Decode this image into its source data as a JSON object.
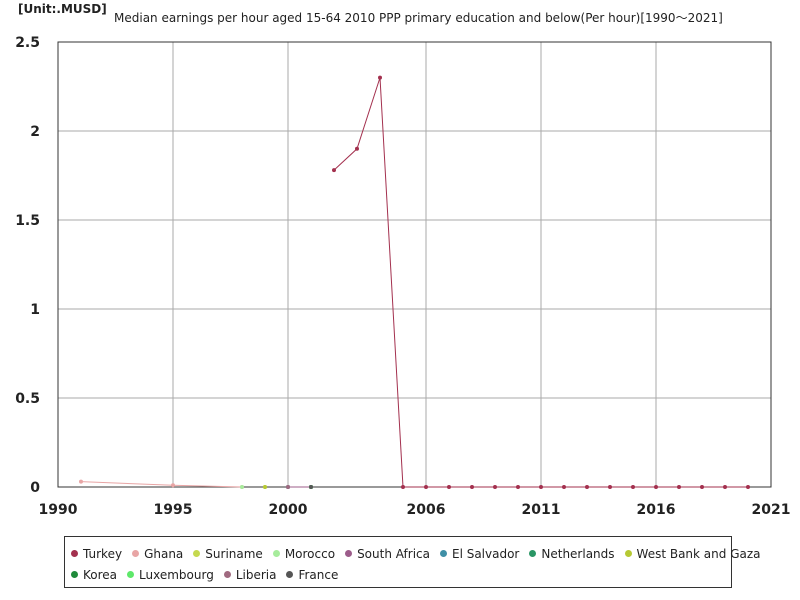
{
  "chart_data": {
    "type": "line",
    "title": "Median earnings per hour aged 15-64 2010 PPP primary education and below(Per hour)[1990～2021]",
    "unit_label": "[Unit:.MUSD]",
    "xlim": [
      1990,
      2021
    ],
    "ylim": [
      0,
      2.5
    ],
    "x_ticks": [
      1990,
      1995,
      2000,
      2006,
      2011,
      2016,
      2021
    ],
    "y_ticks": [
      0,
      0.5,
      1,
      1.5,
      2,
      2.5
    ],
    "grid": true,
    "legend_position": "bottom",
    "series": [
      {
        "name": "Turkey",
        "color": "#a3304e",
        "points": [
          [
            2002,
            1.78
          ],
          [
            2003,
            1.9
          ],
          [
            2004,
            2.3
          ],
          [
            2005,
            0
          ],
          [
            2006,
            0
          ],
          [
            2007,
            0
          ],
          [
            2008,
            0
          ],
          [
            2009,
            0
          ],
          [
            2010,
            0
          ],
          [
            2011,
            0
          ],
          [
            2012,
            0
          ],
          [
            2013,
            0
          ],
          [
            2014,
            0
          ],
          [
            2015,
            0
          ],
          [
            2016,
            0
          ],
          [
            2017,
            0
          ],
          [
            2018,
            0
          ],
          [
            2019,
            0
          ],
          [
            2020,
            0
          ]
        ]
      },
      {
        "name": "Ghana",
        "color": "#e8a5a5",
        "points": [
          [
            1991,
            0.03
          ],
          [
            1995,
            0.01
          ],
          [
            1998,
            0.0
          ]
        ]
      },
      {
        "name": "Suriname",
        "color": "#c5d94f",
        "points": [
          [
            1999,
            0.0
          ]
        ]
      },
      {
        "name": "Morocco",
        "color": "#a7ec9c",
        "points": [
          [
            1998,
            0.0
          ]
        ]
      },
      {
        "name": "South Africa",
        "color": "#9c5c8a",
        "points": [
          [
            2000,
            0.0
          ],
          [
            2001,
            0.0
          ]
        ]
      },
      {
        "name": "El Salvador",
        "color": "#3f8fa6",
        "points": [
          [
            2000,
            0.0
          ]
        ]
      },
      {
        "name": "Netherlands",
        "color": "#2a9665",
        "points": [
          [
            2001,
            0.0
          ]
        ]
      },
      {
        "name": "West Bank and Gaza",
        "color": "#b6c934",
        "points": [
          [
            1999,
            0.0
          ]
        ]
      },
      {
        "name": "Korea",
        "color": "#1f8a3a",
        "points": [
          [
            2001,
            0.0
          ]
        ]
      },
      {
        "name": "Luxembourg",
        "color": "#5ee86a",
        "points": [
          [
            2001,
            0.0
          ]
        ]
      },
      {
        "name": "Liberia",
        "color": "#a06a80",
        "points": [
          [
            2000,
            0.0
          ]
        ]
      },
      {
        "name": "France",
        "color": "#555555",
        "points": [
          [
            2001,
            0.0
          ]
        ]
      }
    ]
  }
}
